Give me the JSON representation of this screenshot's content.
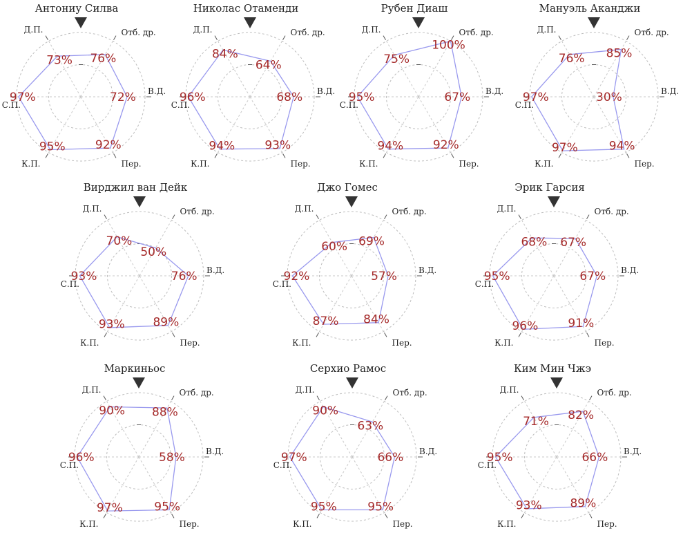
{
  "chart_data": {
    "type": "radar",
    "axes": [
      "Д.П.",
      "Отб. др.",
      "В.Д.",
      "Пер.",
      "К.П.",
      "С.П."
    ],
    "range": [
      0,
      100
    ],
    "value_suffix": "%",
    "colors": {
      "polygon": "#9999ee",
      "value_label": "#a52a2a",
      "marker": "#333333",
      "grid": "#bdbdbd"
    },
    "players": [
      {
        "name": "Антониу Силва",
        "values": [
          73,
          76,
          72,
          92,
          95,
          97
        ]
      },
      {
        "name": "Николас Отаменди",
        "values": [
          84,
          64,
          68,
          93,
          94,
          96
        ]
      },
      {
        "name": "Рубен Диаш",
        "values": [
          75,
          100,
          67,
          92,
          94,
          95
        ]
      },
      {
        "name": "Мануэль Аканджи",
        "values": [
          76,
          85,
          30,
          94,
          97,
          97
        ]
      },
      {
        "name": "Вирджил ван Дейк",
        "values": [
          70,
          50,
          76,
          89,
          93,
          93
        ]
      },
      {
        "name": "Джо Гомес",
        "values": [
          60,
          69,
          57,
          84,
          87,
          92
        ]
      },
      {
        "name": "Эрик Гарсия",
        "values": [
          68,
          67,
          67,
          91,
          96,
          95
        ]
      },
      {
        "name": "Маркиньос",
        "values": [
          90,
          88,
          58,
          95,
          97,
          96
        ]
      },
      {
        "name": "Серхио Рамос",
        "values": [
          90,
          63,
          66,
          95,
          95,
          97
        ]
      },
      {
        "name": "Ким Мин Чжэ",
        "values": [
          71,
          82,
          66,
          89,
          93,
          95
        ]
      }
    ]
  }
}
